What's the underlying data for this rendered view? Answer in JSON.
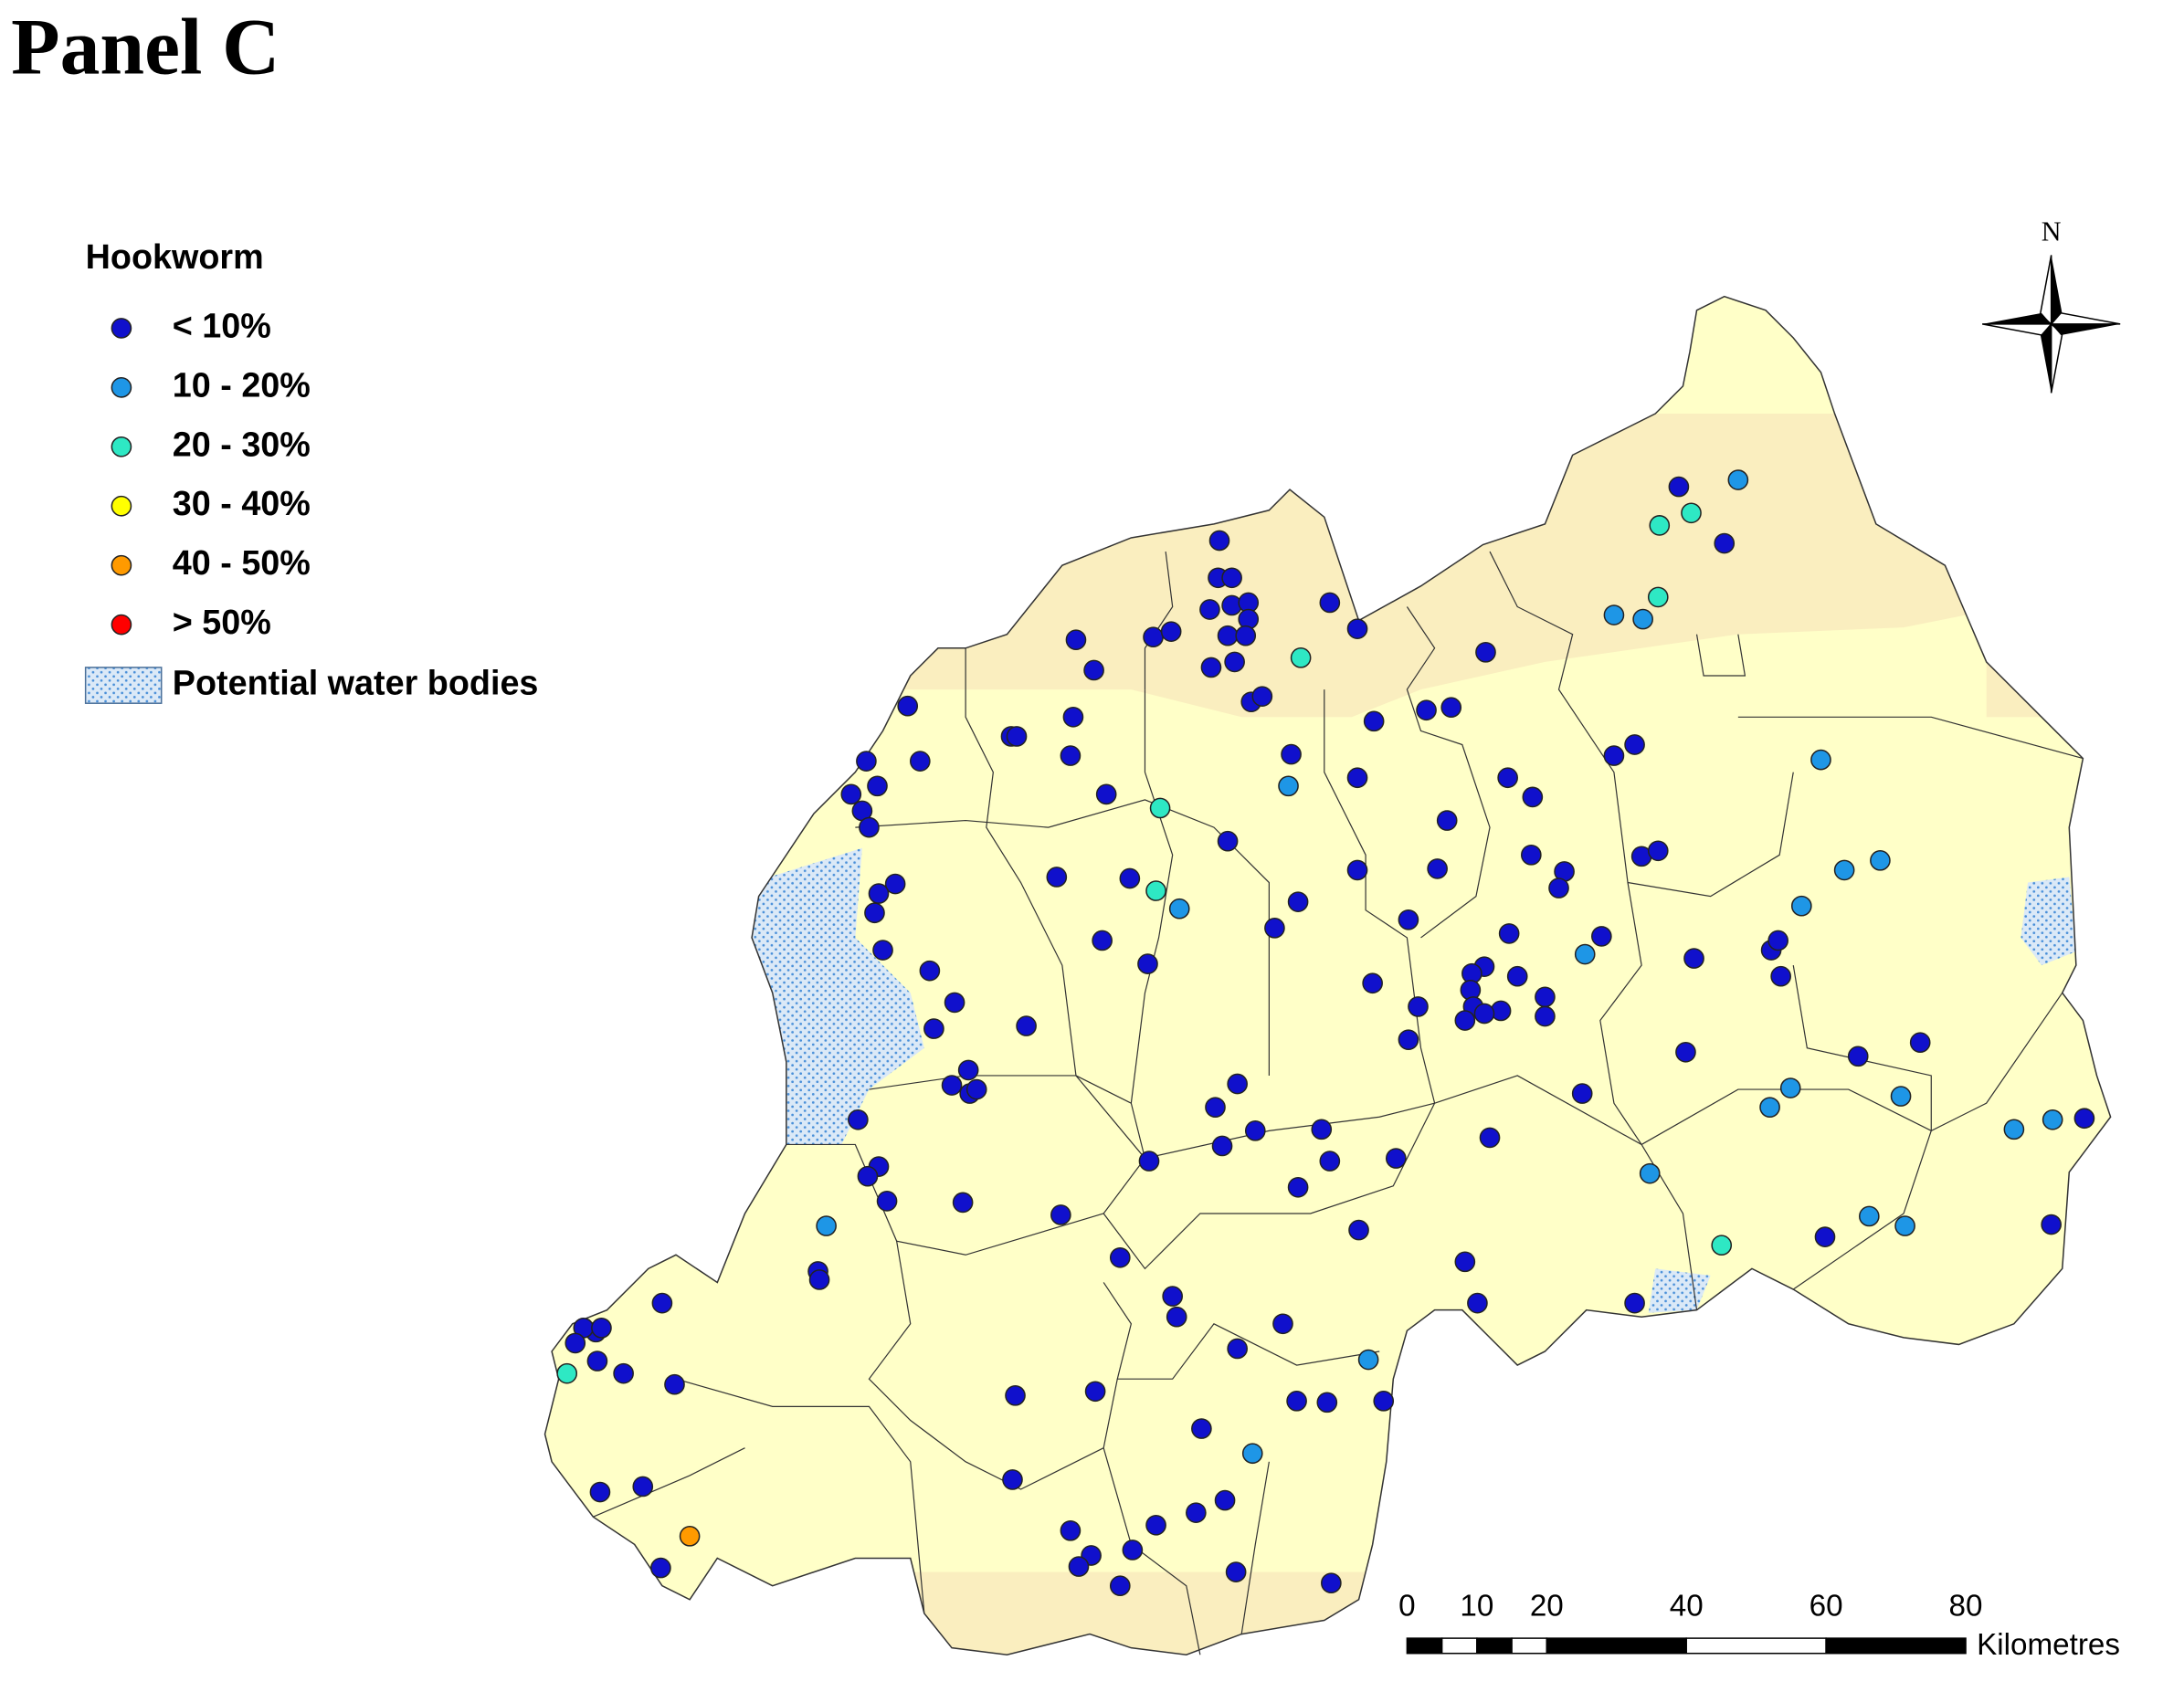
{
  "title": "Panel C",
  "legend": {
    "title": "Hookworm",
    "items": [
      {
        "label": "< 10%",
        "color": "#1010cc"
      },
      {
        "label": "10 - 20%",
        "color": "#1e96e6"
      },
      {
        "label": "20 - 30%",
        "color": "#2ee8c4"
      },
      {
        "label": "30 - 40%",
        "color": "#ffff00"
      },
      {
        "label": "40 - 50%",
        "color": "#ff9a00"
      },
      {
        "label": "> 50%",
        "color": "#ff0000"
      }
    ],
    "water_label": "Potential water bodies"
  },
  "north_label": "N",
  "scale_bar": {
    "ticks": [
      0,
      10,
      20,
      40,
      60,
      80
    ],
    "unit": "Kilometres"
  }
}
